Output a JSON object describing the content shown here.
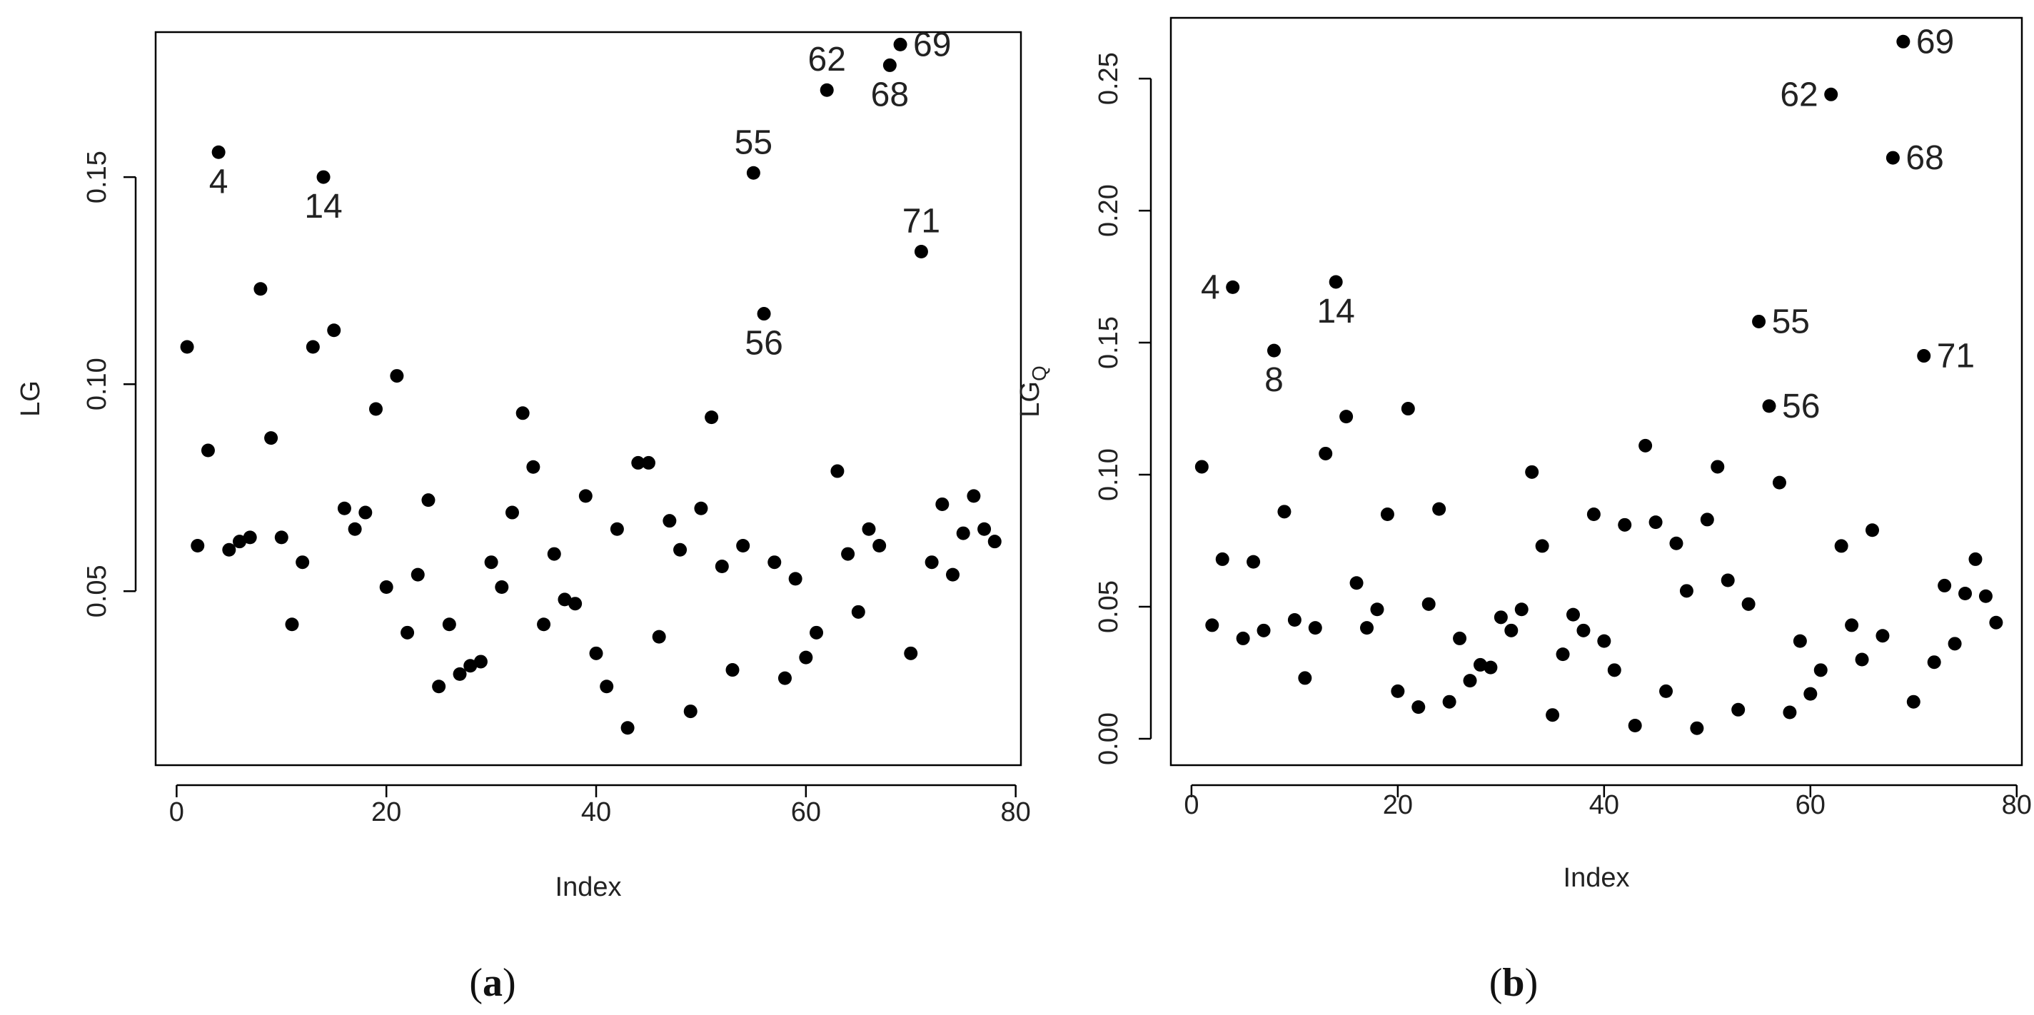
{
  "chart_data": [
    {
      "type": "scatter",
      "panel_label": "(a)",
      "xlabel": "Index",
      "ylabel": "LG",
      "xlim": [
        -2,
        80.5
      ],
      "ylim": [
        0.008,
        0.185
      ],
      "xticks": [
        0,
        20,
        40,
        60,
        80
      ],
      "xtick_labels": [
        "0",
        "20",
        "40",
        "60",
        "80"
      ],
      "yticks": [
        0.05,
        0.1,
        0.15
      ],
      "ytick_labels": [
        "0.05",
        "0.10",
        "0.15"
      ],
      "grid": false,
      "legend": "none",
      "point_color": "#000000",
      "series": [
        {
          "x": [
            1,
            2,
            3,
            4,
            5,
            6,
            7,
            8,
            9,
            10,
            11,
            12,
            13,
            14,
            15,
            16,
            17,
            18,
            19,
            20,
            21,
            22,
            23,
            24,
            25,
            26,
            27,
            28,
            29,
            30,
            31,
            32,
            33,
            34,
            35,
            36,
            37,
            38,
            39,
            40,
            41,
            42,
            43,
            44,
            45,
            46,
            47,
            48,
            49,
            50,
            51,
            52,
            53,
            54,
            55,
            56,
            57,
            58,
            59,
            60,
            61,
            62,
            63,
            64,
            65,
            66,
            67,
            68,
            69,
            70,
            71,
            72,
            73,
            74,
            75,
            76,
            77,
            78
          ],
          "y": [
            0.109,
            0.061,
            0.084,
            0.156,
            0.06,
            0.062,
            0.063,
            0.123,
            0.087,
            0.063,
            0.042,
            0.057,
            0.109,
            0.15,
            0.113,
            0.07,
            0.065,
            0.069,
            0.094,
            0.051,
            0.102,
            0.04,
            0.054,
            0.072,
            0.027,
            0.042,
            0.03,
            0.032,
            0.033,
            0.057,
            0.051,
            0.069,
            0.093,
            0.08,
            0.042,
            0.059,
            0.048,
            0.047,
            0.073,
            0.035,
            0.027,
            0.065,
            0.017,
            0.081,
            0.081,
            0.039,
            0.067,
            0.06,
            0.021,
            0.07,
            0.092,
            0.056,
            0.031,
            0.061,
            0.151,
            0.117,
            0.057,
            0.029,
            0.053,
            0.034,
            0.04,
            0.171,
            0.079,
            0.059,
            0.045,
            0.065,
            0.061,
            0.177,
            0.182,
            0.035,
            0.132,
            0.057,
            0.071,
            0.054,
            0.064,
            0.073,
            0.065,
            0.062
          ]
        }
      ],
      "annotations": [
        {
          "index": 4,
          "text": "4",
          "pos": "below"
        },
        {
          "index": 14,
          "text": "14",
          "pos": "below"
        },
        {
          "index": 55,
          "text": "55",
          "pos": "above"
        },
        {
          "index": 56,
          "text": "56",
          "pos": "below"
        },
        {
          "index": 62,
          "text": "62",
          "pos": "above"
        },
        {
          "index": 68,
          "text": "68",
          "pos": "below"
        },
        {
          "index": 69,
          "text": "69",
          "pos": "right"
        },
        {
          "index": 71,
          "text": "71",
          "pos": "above"
        }
      ]
    },
    {
      "type": "scatter",
      "panel_label": "(b)",
      "xlabel": "Index",
      "ylabel": "LG",
      "ylabel_subscript": "Q",
      "xlim": [
        -2,
        80.5
      ],
      "ylim": [
        -0.01,
        0.273
      ],
      "xticks": [
        0,
        20,
        40,
        60,
        80
      ],
      "xtick_labels": [
        "0",
        "20",
        "40",
        "60",
        "80"
      ],
      "yticks": [
        0.0,
        0.05,
        0.1,
        0.15,
        0.2,
        0.25
      ],
      "ytick_labels": [
        "0.00",
        "0.05",
        "0.10",
        "0.15",
        "0.20",
        "0.25"
      ],
      "grid": false,
      "legend": "none",
      "point_color": "#000000",
      "series": [
        {
          "x": [
            1,
            2,
            3,
            4,
            5,
            6,
            7,
            8,
            9,
            10,
            11,
            12,
            13,
            14,
            15,
            16,
            17,
            18,
            19,
            20,
            21,
            22,
            23,
            24,
            25,
            26,
            27,
            28,
            29,
            30,
            31,
            32,
            33,
            34,
            35,
            36,
            37,
            38,
            39,
            40,
            41,
            42,
            43,
            44,
            45,
            46,
            47,
            48,
            49,
            50,
            51,
            52,
            53,
            54,
            55,
            56,
            57,
            58,
            59,
            60,
            61,
            62,
            63,
            64,
            65,
            66,
            67,
            68,
            69,
            70,
            71,
            72,
            73,
            74,
            75,
            76,
            77,
            78
          ],
          "y": [
            0.103,
            0.043,
            0.068,
            0.171,
            0.038,
            0.067,
            0.041,
            0.147,
            0.086,
            0.045,
            0.023,
            0.042,
            0.108,
            0.173,
            0.122,
            0.059,
            0.042,
            0.049,
            0.085,
            0.018,
            0.125,
            0.012,
            0.051,
            0.087,
            0.014,
            0.038,
            0.022,
            0.028,
            0.027,
            0.046,
            0.041,
            0.049,
            0.101,
            0.073,
            0.009,
            0.032,
            0.047,
            0.041,
            0.085,
            0.037,
            0.026,
            0.081,
            0.005,
            0.111,
            0.082,
            0.018,
            0.074,
            0.056,
            0.004,
            0.083,
            0.103,
            0.06,
            0.011,
            0.051,
            0.158,
            0.126,
            0.097,
            0.01,
            0.037,
            0.017,
            0.026,
            0.244,
            0.073,
            0.043,
            0.03,
            0.079,
            0.039,
            0.22,
            0.264,
            0.014,
            0.145,
            0.029,
            0.058,
            0.036,
            0.055,
            0.068,
            0.054,
            0.044
          ]
        }
      ],
      "annotations": [
        {
          "index": 4,
          "text": "4",
          "pos": "left"
        },
        {
          "index": 8,
          "text": "8",
          "pos": "below"
        },
        {
          "index": 14,
          "text": "14",
          "pos": "below"
        },
        {
          "index": 55,
          "text": "55",
          "pos": "right"
        },
        {
          "index": 56,
          "text": "56",
          "pos": "right"
        },
        {
          "index": 62,
          "text": "62",
          "pos": "left"
        },
        {
          "index": 68,
          "text": "68",
          "pos": "right"
        },
        {
          "index": 69,
          "text": "69",
          "pos": "right"
        },
        {
          "index": 71,
          "text": "71",
          "pos": "right"
        }
      ]
    }
  ]
}
